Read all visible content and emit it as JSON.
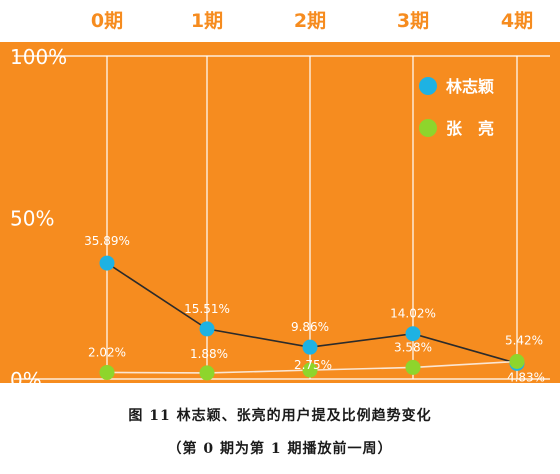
{
  "chart_data": {
    "type": "line",
    "categories": [
      "0期",
      "1期",
      "2期",
      "3期",
      "4期"
    ],
    "ylim": [
      0,
      100
    ],
    "yticks": [
      {
        "value": 0,
        "label": "0%"
      },
      {
        "value": 50,
        "label": "50%"
      },
      {
        "value": 100,
        "label": "100%"
      }
    ],
    "grid": true,
    "legend_position": "top-right",
    "series": [
      {
        "name": "林志颖",
        "values": [
          35.89,
          15.51,
          9.86,
          14.02,
          4.83
        ],
        "labels": [
          "35.89%",
          "15.51%",
          "9.86%",
          "14.02%",
          "4.83%"
        ],
        "color": "#1eb2e3",
        "line_color": "#2b2b2b"
      },
      {
        "name": "张　亮",
        "values": [
          2.02,
          1.88,
          2.75,
          3.58,
          5.42
        ],
        "labels": [
          "2.02%",
          "1.88%",
          "2.75%",
          "3.58%",
          "5.42%"
        ],
        "color": "#8ed52c",
        "line_color": "#fbe6d2"
      }
    ],
    "colors": {
      "background": "#f68c1f",
      "grid": "#ffffff",
      "text": "#ffffff"
    }
  },
  "caption": {
    "title": "图 11  林志颖、张亮的用户提及比例趋势变化",
    "subtitle": "（第 0 期为第 1 期播放前一周）"
  }
}
